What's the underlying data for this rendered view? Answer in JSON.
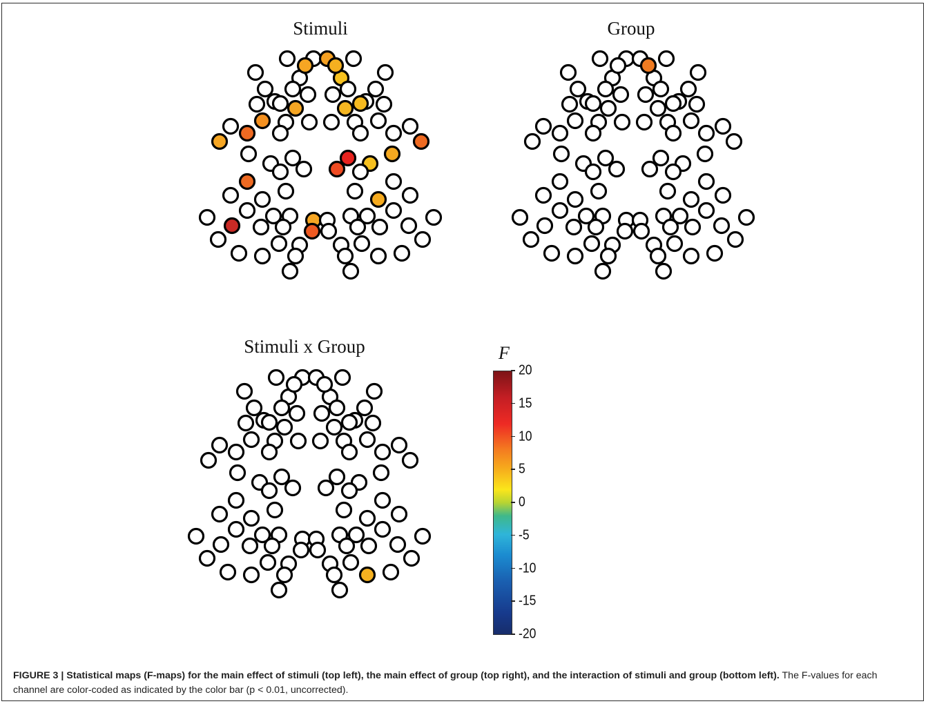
{
  "panels": [
    {
      "id": "stimuli",
      "title": "Stimuli",
      "highlights": {
        "1": "#f6a623",
        "2": "#f4901f",
        "14": "#f6a623",
        "16": "#ee6a22",
        "18": "#f6a623",
        "24": "#ee6a22",
        "31": "#f6a623",
        "32": "#ef5a22",
        "40": "#c92a25",
        "45": "#f5b621",
        "50": "#f7c21f",
        "52": "#f4a022",
        "57": "#f6ba1f",
        "58": "#f5b020",
        "62": "#ef6a21",
        "63": "#f5a920",
        "64": "#f6c01f",
        "65": "#e8231f",
        "66": "#ef4b22",
        "70": "#f6ab1f"
      }
    },
    {
      "id": "group",
      "title": "Group",
      "highlights": {
        "58": "#ef7b22"
      }
    },
    {
      "id": "interaction",
      "title": "Stimuli x Group",
      "highlights": {
        "79": "#f6b120"
      }
    }
  ],
  "colorbar": {
    "symbol": "F",
    "ticks": [
      "20",
      "15",
      "10",
      "5",
      "0",
      "-5",
      "-10",
      "-15",
      "-20"
    ],
    "range": [
      -20,
      20
    ]
  },
  "caption": {
    "bold": "FIGURE 3 | Statistical maps (F-maps) for the main effect of stimuli (top left), the main effect of group (top right), and the interaction of stimuli and group (bottom left).",
    "plain": " The F-values for each channel are color-coded as indicated by the color bar (p < 0.01, uncorrected)."
  }
}
